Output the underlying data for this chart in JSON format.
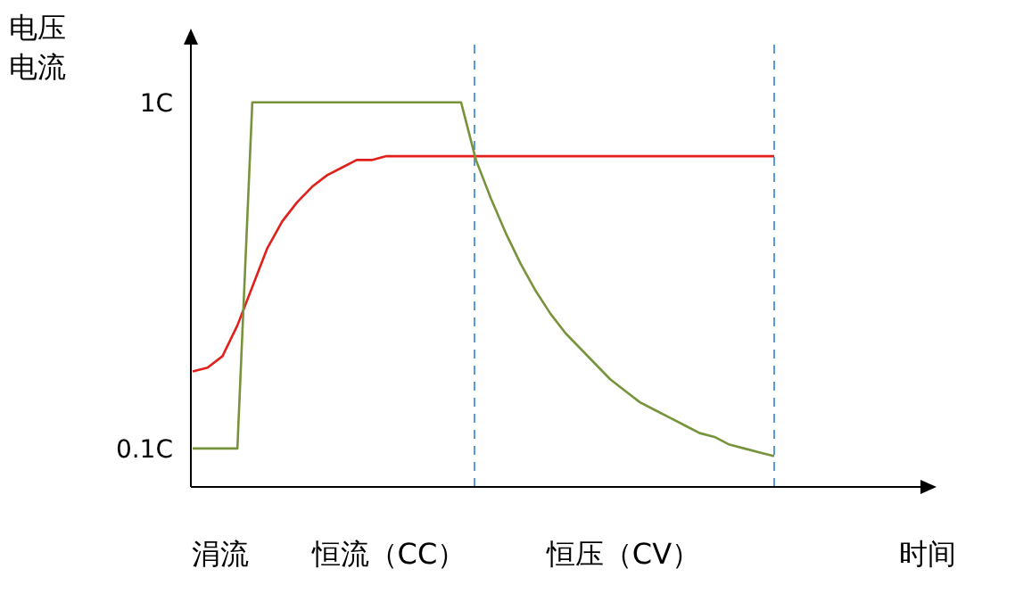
{
  "chart_data": {
    "type": "line",
    "ylabel": "电压电流",
    "xlabel": "时间",
    "ylim": [
      0,
      1.15
    ],
    "yticks": [
      {
        "value": 0.1,
        "label": "0.1C"
      },
      {
        "value": 1,
        "label": "1C"
      }
    ],
    "categories": [
      null,
      null,
      null,
      null,
      null,
      null,
      null,
      null,
      null,
      null,
      null,
      null,
      null,
      null,
      null,
      null,
      null,
      null,
      null,
      null,
      null,
      null,
      null,
      null,
      null,
      null,
      null,
      null,
      null,
      null,
      null,
      null,
      null,
      null,
      null,
      null,
      null,
      null,
      null,
      null
    ],
    "series": [
      {
        "color": "#e0201a",
        "values": [
          0.3,
          0.31,
          0.34,
          0.42,
          0.52,
          0.62,
          0.69,
          0.74,
          0.78,
          0.81,
          0.83,
          0.85,
          0.85,
          0.86,
          0.86,
          0.86,
          0.86,
          0.86,
          0.86,
          0.86,
          0.86,
          0.86,
          0.86,
          0.86,
          0.86,
          0.86,
          0.86,
          0.86,
          0.86,
          0.86,
          0.86,
          0.86,
          0.86,
          0.86,
          0.86,
          0.86,
          0.86,
          0.86,
          0.86,
          0.86
        ]
      },
      {
        "color": "#77933c",
        "values": [
          0.1,
          0.1,
          0.1,
          0.1,
          1.0,
          1.0,
          1.0,
          1.0,
          1.0,
          1.0,
          1.0,
          1.0,
          1.0,
          1.0,
          1.0,
          1.0,
          1.0,
          1.0,
          1.0,
          0.85,
          0.75,
          0.66,
          0.58,
          0.51,
          0.45,
          0.4,
          0.36,
          0.32,
          0.28,
          0.25,
          0.22,
          0.2,
          0.18,
          0.16,
          0.14,
          0.13,
          0.11,
          0.1,
          0.09,
          0.08
        ]
      }
    ],
    "annotations": [
      "涓流",
      "恒流（CC）",
      "恒压（CV）"
    ],
    "marker": "none",
    "line_style": "solid",
    "grid": false
  }
}
